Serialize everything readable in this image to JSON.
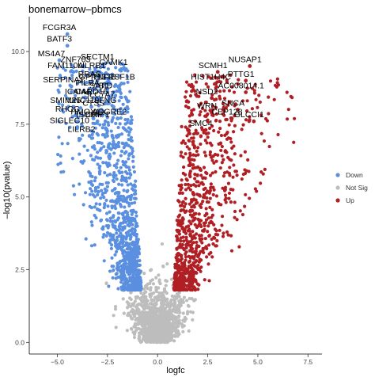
{
  "chart_data": {
    "type": "scatter",
    "title": "bonemarrow–pbmcs",
    "xlabel": "logfc",
    "ylabel": "–log10(pvalue)",
    "xlim": [
      -6.4,
      8.2
    ],
    "ylim": [
      -0.4,
      11.2
    ],
    "x_ticks": [
      -5.0,
      -2.5,
      0.0,
      2.5,
      5.0,
      7.5
    ],
    "x_tick_labels": [
      "−5.0",
      "−2.5",
      "0.0",
      "2.5",
      "5.0",
      "7.5"
    ],
    "y_ticks": [
      0.0,
      2.5,
      5.0,
      7.5,
      10.0
    ],
    "y_tick_labels": [
      "0.0",
      "2.5",
      "5.0",
      "7.5",
      "10.0"
    ],
    "grid": false,
    "legend_position": "right",
    "legend": [
      {
        "name": "Down",
        "color": "#5b8fe0"
      },
      {
        "name": "Not Sig",
        "color": "#bdbdbd"
      },
      {
        "name": "Up",
        "color": "#b01f24"
      }
    ],
    "series": [
      {
        "name": "Down",
        "color": "#5b8fe0",
        "n_points": 1100,
        "x_range": [
          -5.0,
          -0.8
        ],
        "y_range": [
          1.8,
          10.6
        ]
      },
      {
        "name": "Not Sig",
        "color": "#bdbdbd",
        "n_points": 1300,
        "x_range": [
          -1.6,
          1.6
        ],
        "y_range": [
          0.0,
          3.5
        ]
      },
      {
        "name": "Up",
        "color": "#b01f24",
        "n_points": 900,
        "x_range": [
          0.8,
          7.0
        ],
        "y_range": [
          1.8,
          9.5
        ]
      }
    ],
    "labeled_points": [
      {
        "gene": "FCGR3A",
        "x": -4.5,
        "y": 10.6
      },
      {
        "gene": "BATF3",
        "x": -4.5,
        "y": 10.2
      },
      {
        "gene": "MS4A7",
        "x": -4.9,
        "y": 9.7
      },
      {
        "gene": "ZNF703",
        "x": -3.7,
        "y": 9.5
      },
      {
        "gene": "FAM110A",
        "x": -4.2,
        "y": 9.3
      },
      {
        "gene": "SECTM1",
        "x": -2.6,
        "y": 9.6
      },
      {
        "gene": "CAMK1",
        "x": -1.8,
        "y": 9.4
      },
      {
        "gene": "LILRB1",
        "x": -2.9,
        "y": 9.3
      },
      {
        "gene": "RRAS",
        "x": -3.0,
        "y": 9.0
      },
      {
        "gene": "TNFRSF1B",
        "x": -1.8,
        "y": 8.9
      },
      {
        "gene": "GPR137B",
        "x": -2.6,
        "y": 8.9
      },
      {
        "gene": "SERPINA1",
        "x": -4.3,
        "y": 8.8
      },
      {
        "gene": "PILRA",
        "x": -3.1,
        "y": 8.7
      },
      {
        "gene": "BID",
        "x": -2.2,
        "y": 8.6
      },
      {
        "gene": "SAT1",
        "x": -2.5,
        "y": 8.6
      },
      {
        "gene": "SLC7A7",
        "x": -2.5,
        "y": 8.3
      },
      {
        "gene": "ICAM4",
        "x": -3.6,
        "y": 8.4
      },
      {
        "gene": "CARD16",
        "x": -2.9,
        "y": 8.4
      },
      {
        "gene": "SMIM25",
        "x": -4.2,
        "y": 8.1
      },
      {
        "gene": "UNC119",
        "x": -3.3,
        "y": 8.1
      },
      {
        "gene": "LFNG",
        "x": -2.2,
        "y": 8.1
      },
      {
        "gene": "CTSS",
        "x": -2.8,
        "y": 8.0
      },
      {
        "gene": "RHOC",
        "x": -4.1,
        "y": 7.8
      },
      {
        "gene": "ADGRE2",
        "x": -2.0,
        "y": 7.7
      },
      {
        "gene": "HMOX1",
        "x": -3.2,
        "y": 7.7
      },
      {
        "gene": "SIGLEC10",
        "x": -4.0,
        "y": 7.4
      },
      {
        "gene": "ISOMP",
        "x": -3.0,
        "y": 7.6
      },
      {
        "gene": "CRIP1",
        "x": -2.6,
        "y": 7.6
      },
      {
        "gene": "LILRB2",
        "x": -3.4,
        "y": 7.1
      },
      {
        "gene": "NUSAP1",
        "x": 4.6,
        "y": 9.5
      },
      {
        "gene": "SCMH1",
        "x": 3.0,
        "y": 9.3
      },
      {
        "gene": "PTTG1",
        "x": 4.4,
        "y": 9.0
      },
      {
        "gene": "HIST1H4C",
        "x": 2.9,
        "y": 8.9
      },
      {
        "gene": "AC008014.1",
        "x": 4.4,
        "y": 8.6
      },
      {
        "gene": "NSD2",
        "x": 2.7,
        "y": 8.4
      },
      {
        "gene": "SNCA",
        "x": 4.0,
        "y": 8.0
      },
      {
        "gene": "WRN",
        "x": 2.7,
        "y": 7.9
      },
      {
        "gene": "CEP128",
        "x": 3.7,
        "y": 7.7
      },
      {
        "gene": "GLCCI1",
        "x": 4.8,
        "y": 7.6
      },
      {
        "gene": "SMC4",
        "x": 2.4,
        "y": 7.3
      }
    ]
  }
}
